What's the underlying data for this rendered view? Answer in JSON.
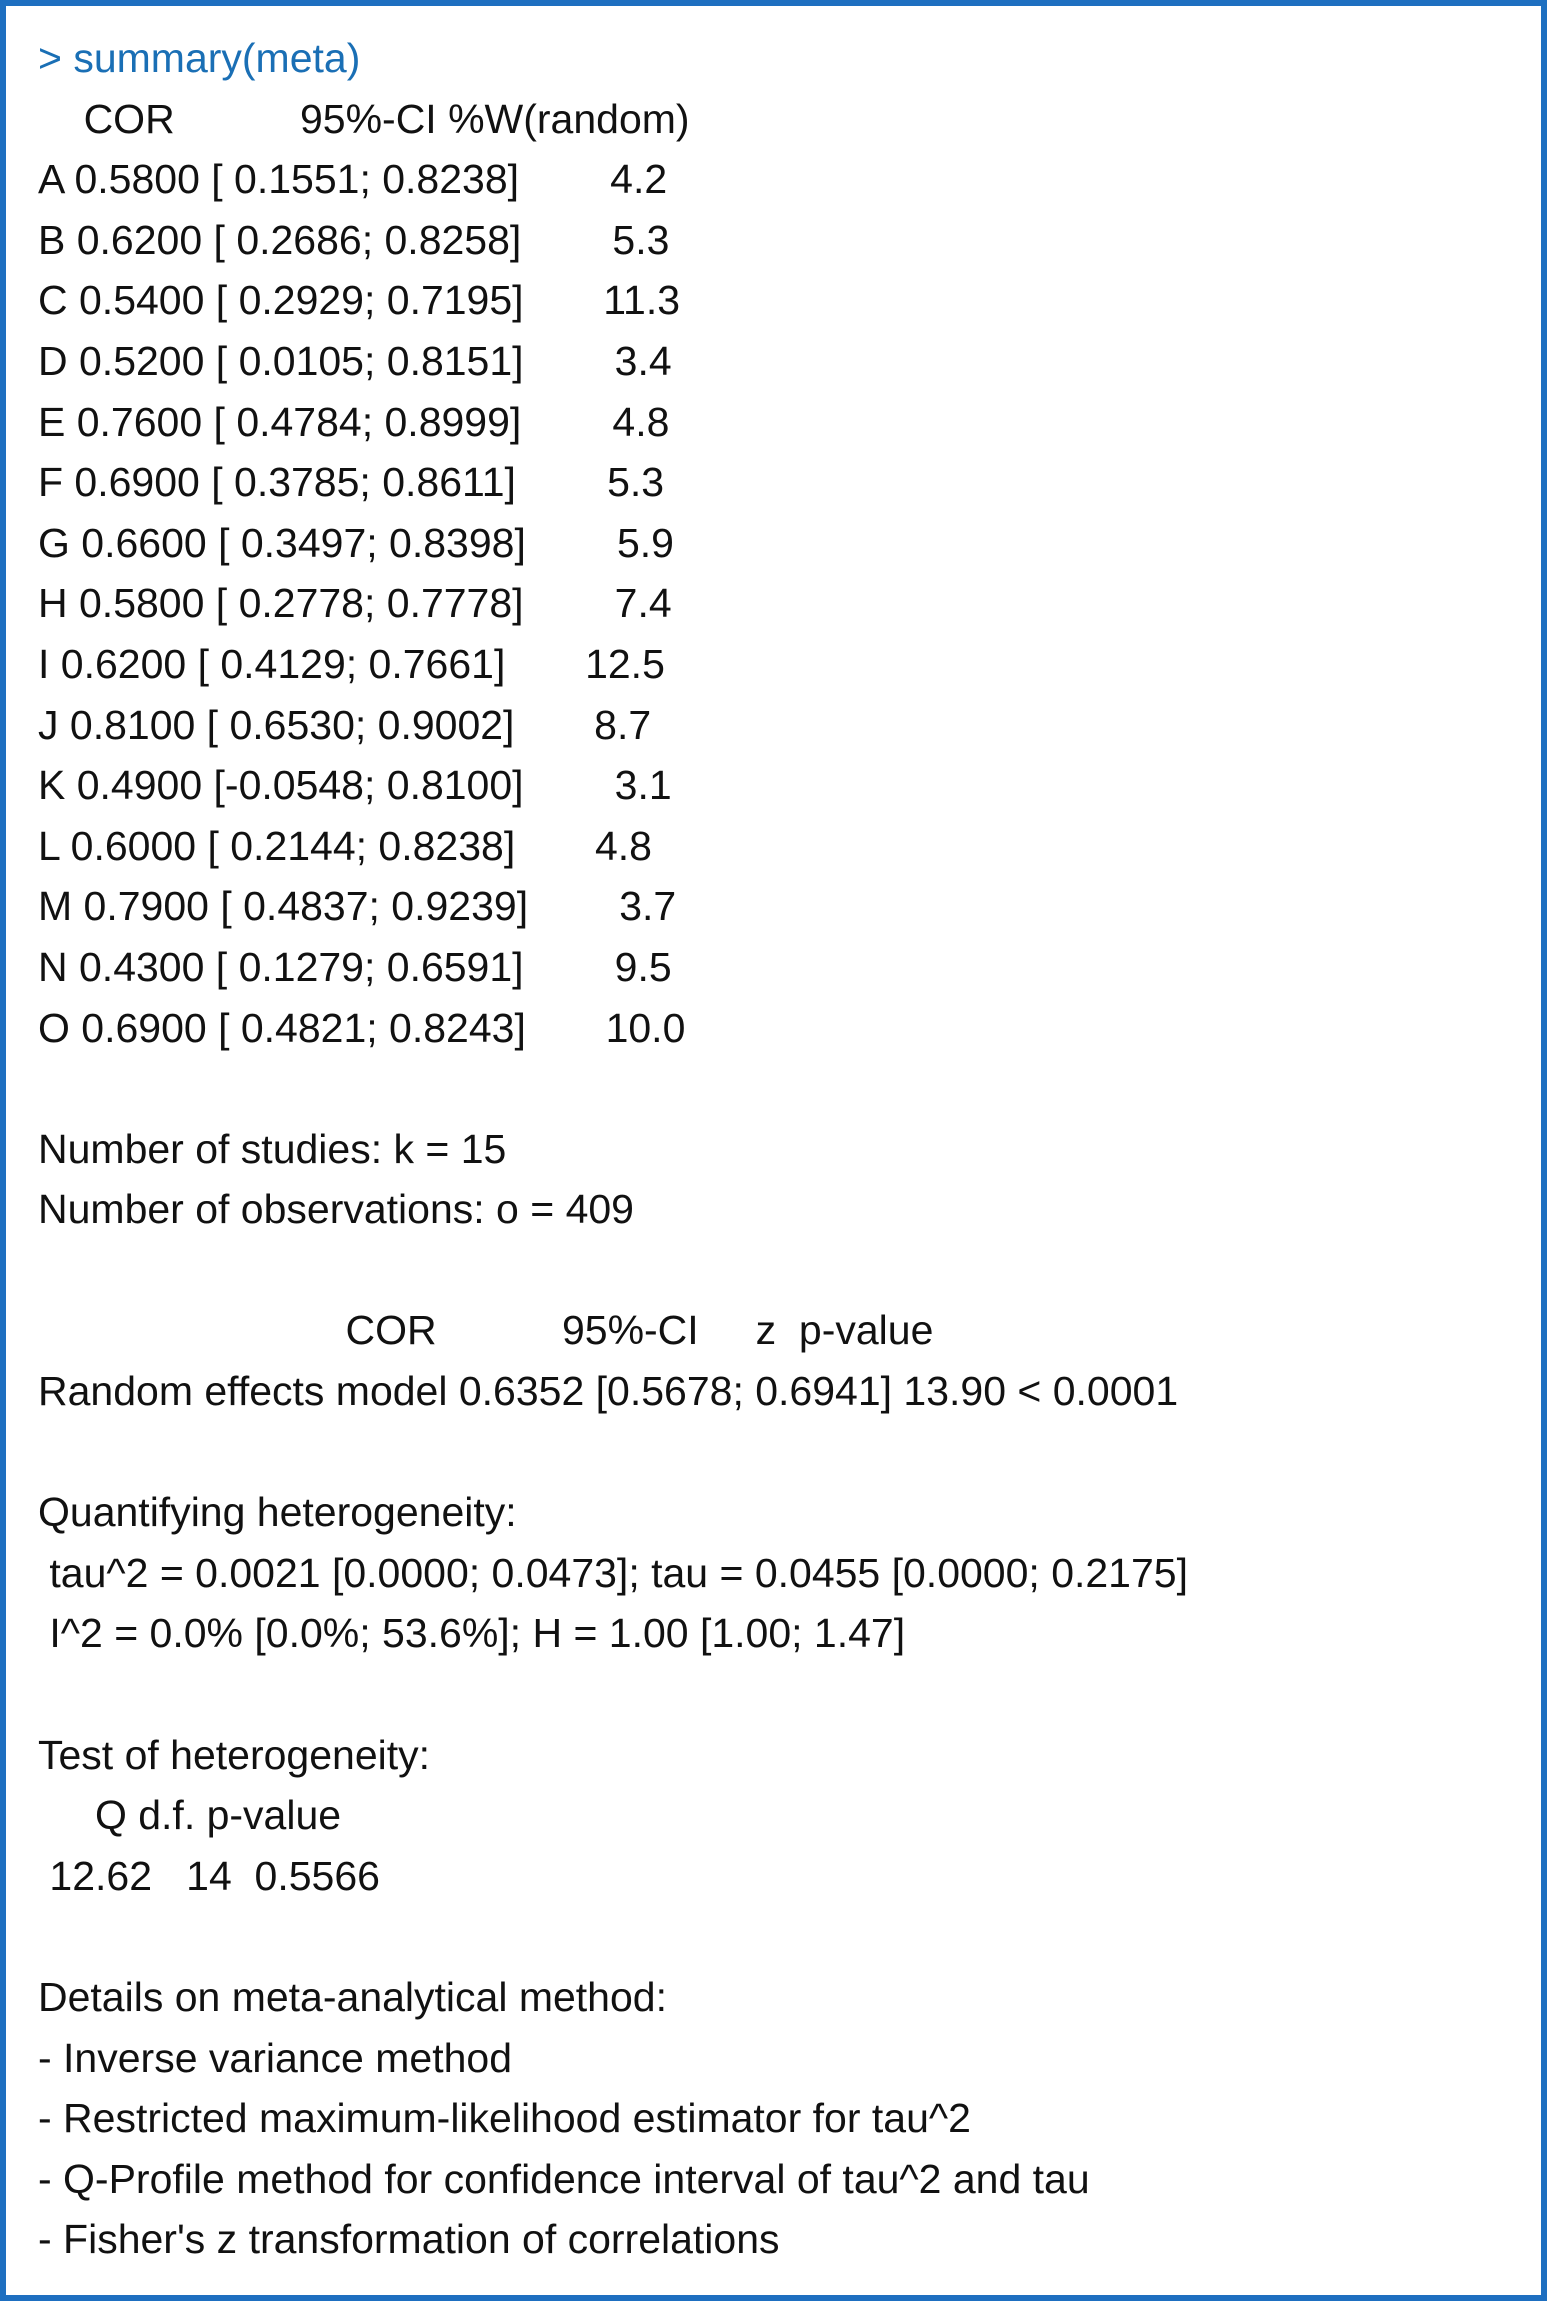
{
  "console": {
    "command": "> summary(meta)",
    "blocks": [
      {
        "lines": [
          "    COR           95%-CI %W(random)",
          "A 0.5800 [ 0.1551; 0.8238]        4.2",
          "B 0.6200 [ 0.2686; 0.8258]        5.3",
          "C 0.5400 [ 0.2929; 0.7195]       11.3",
          "D 0.5200 [ 0.0105; 0.8151]        3.4",
          "E 0.7600 [ 0.4784; 0.8999]        4.8",
          "F 0.6900 [ 0.3785; 0.8611]        5.3",
          "G 0.6600 [ 0.3497; 0.8398]        5.9",
          "H 0.5800 [ 0.2778; 0.7778]        7.4",
          "I 0.6200 [ 0.4129; 0.7661]       12.5",
          "J 0.8100 [ 0.6530; 0.9002]       8.7",
          "K 0.4900 [-0.0548; 0.8100]        3.1",
          "L 0.6000 [ 0.2144; 0.8238]       4.8",
          "M 0.7900 [ 0.4837; 0.9239]        3.7",
          "N 0.4300 [ 0.1279; 0.6591]        9.5",
          "O 0.6900 [ 0.4821; 0.8243]       10.0"
        ]
      },
      {
        "lines": [
          "Number of studies: k = 15",
          "Number of observations: o = 409"
        ]
      },
      {
        "lines": [
          "                           COR           95%-CI     z  p-value",
          "Random effects model 0.6352 [0.5678; 0.6941] 13.90 < 0.0001"
        ]
      },
      {
        "lines": [
          "Quantifying heterogeneity:",
          " tau^2 = 0.0021 [0.0000; 0.0473]; tau = 0.0455 [0.0000; 0.2175]",
          " I^2 = 0.0% [0.0%; 53.6%]; H = 1.00 [1.00; 1.47]"
        ]
      },
      {
        "lines": [
          "Test of heterogeneity:",
          "     Q d.f. p-value",
          " 12.62   14  0.5566"
        ]
      },
      {
        "lines": [
          "Details on meta-analytical method:",
          "- Inverse variance method",
          "- Restricted maximum-likelihood estimator for tau^2",
          "- Q-Profile method for confidence interval of tau^2 and tau",
          "- Fisher's z transformation of correlations"
        ]
      }
    ]
  }
}
